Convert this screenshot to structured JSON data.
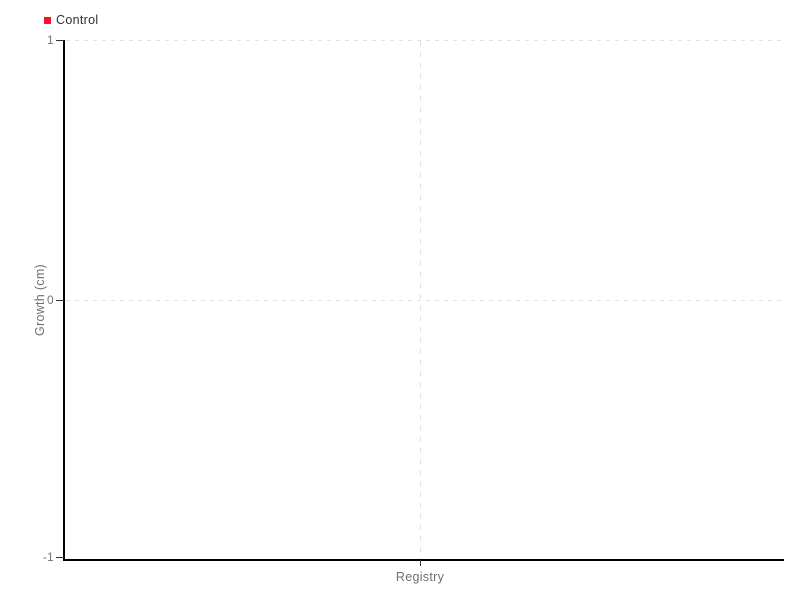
{
  "legend": {
    "items": [
      {
        "label": "Control",
        "color": "#f8112b"
      }
    ]
  },
  "y_axis": {
    "title": "Growth (cm)",
    "ticks": {
      "top": "1",
      "middle": "0",
      "bottom": "-1"
    }
  },
  "x_axis": {
    "ticks": {
      "center": "Registry"
    }
  },
  "colors": {
    "series_control": "#f8112b",
    "axis_line": "#000000",
    "gridline": "#e1e1e1",
    "tick_label": "#757575",
    "legend_text": "#2f2f2f"
  },
  "chart_data": {
    "type": "bar",
    "title": "",
    "categories": [
      "Registry"
    ],
    "series": [
      {
        "name": "Control",
        "color": "#f8112b",
        "values": []
      }
    ],
    "visible_data_points": 0,
    "xlabel": "",
    "ylabel": "Growth (cm)",
    "ylim": [
      -1,
      1
    ],
    "yticks": [
      1,
      0,
      -1
    ],
    "grid": "dashed horizontal gridlines at y=1 and y=0; dashed vertical gridline at category center",
    "legend_position": "top-left"
  }
}
